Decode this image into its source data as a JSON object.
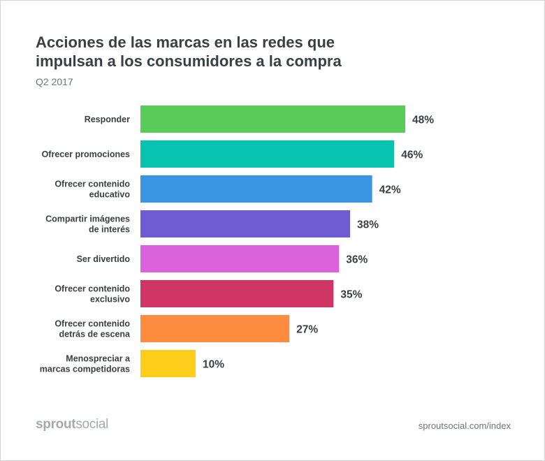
{
  "header": {
    "title": "Acciones de las marcas en las redes que impulsan a los consumidores a la compra",
    "subtitle": "Q2 2017"
  },
  "footer": {
    "brand_bold": "sprout",
    "brand_light": "social",
    "source": "sproutsocial.com/index"
  },
  "chart_data": {
    "type": "bar",
    "orientation": "horizontal",
    "title": "Acciones de las marcas en las redes que impulsan a los consumidores a la compra",
    "subtitle": "Q2 2017",
    "xlabel": "",
    "ylabel": "",
    "xlim": [
      0,
      48
    ],
    "grid": false,
    "legend": "none",
    "unit": "%",
    "categories": [
      [
        "Responder"
      ],
      [
        "Ofrecer promociones"
      ],
      [
        "Ofrecer contenido",
        "educativo"
      ],
      [
        "Compartir imágenes",
        "de interés"
      ],
      [
        "Ser divertido"
      ],
      [
        "Ofrecer contenido",
        "exclusivo"
      ],
      [
        "Ofrecer contenido",
        "detrás de escena"
      ],
      [
        "Menospreciar a",
        "marcas competidoras"
      ]
    ],
    "values": [
      48,
      46,
      42,
      38,
      36,
      35,
      27,
      10
    ],
    "value_labels": [
      "48%",
      "46%",
      "42%",
      "38%",
      "36%",
      "35%",
      "27%",
      "10%"
    ],
    "colors": [
      "#59cb59",
      "#08c3b0",
      "#3a96e2",
      "#6f5cd3",
      "#db62dd",
      "#cf3565",
      "#fd8b40",
      "#fdcd1c"
    ]
  }
}
